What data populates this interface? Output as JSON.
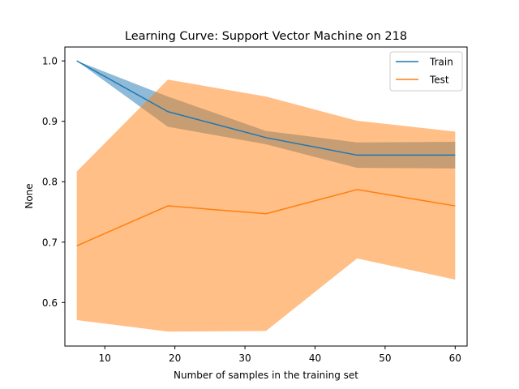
{
  "chart_data": {
    "type": "line",
    "title": "Learning Curve: Support Vector Machine on 218",
    "xlabel": "Number of samples in the training set",
    "ylabel": "None",
    "xlim": [
      4.3,
      61.7
    ],
    "ylim": [
      0.528,
      1.023
    ],
    "xticks": [
      10,
      20,
      30,
      40,
      50,
      60
    ],
    "yticks": [
      0.6,
      0.7,
      0.8,
      0.9,
      1.0
    ],
    "xtick_labels": [
      "10",
      "20",
      "30",
      "40",
      "50",
      "60"
    ],
    "ytick_labels": [
      "0.6",
      "0.7",
      "0.8",
      "0.9",
      "1.0"
    ],
    "legend_position": "top-right",
    "grid": false,
    "x": [
      6,
      19,
      33,
      46,
      60
    ],
    "series": [
      {
        "name": "Train",
        "color": "#1f77b4",
        "band_opacity": 0.5,
        "mean": [
          1.0,
          0.916,
          0.873,
          0.844,
          0.844
        ],
        "lower": [
          1.0,
          0.891,
          0.862,
          0.823,
          0.822
        ],
        "upper": [
          1.0,
          0.941,
          0.884,
          0.865,
          0.866
        ]
      },
      {
        "name": "Test",
        "color": "#ff7f0e",
        "band_opacity": 0.5,
        "mean": [
          0.694,
          0.76,
          0.747,
          0.787,
          0.76
        ],
        "lower": [
          0.571,
          0.552,
          0.553,
          0.673,
          0.638
        ],
        "upper": [
          0.817,
          0.969,
          0.941,
          0.901,
          0.883
        ]
      }
    ]
  }
}
